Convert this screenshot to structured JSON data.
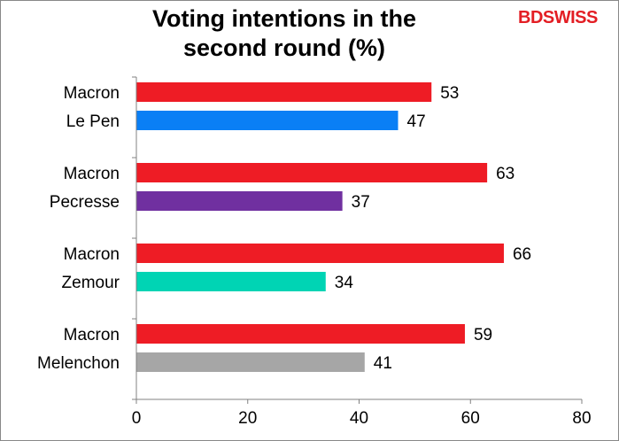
{
  "brand": {
    "part1": "BD",
    "part2": "SWISS"
  },
  "chart_data": {
    "type": "bar",
    "orientation": "horizontal",
    "title": "Voting intentions in the second round (%)",
    "title_lines": [
      "Voting intentions in the",
      "second round (%)"
    ],
    "xlim": [
      0,
      80
    ],
    "xticks": [
      0,
      20,
      40,
      60,
      80
    ],
    "grid": false,
    "groups": [
      {
        "bars": [
          {
            "label": "Macron",
            "value": 53,
            "color": "#ee1c25"
          },
          {
            "label": "Le Pen",
            "value": 47,
            "color": "#0a7ff5"
          }
        ]
      },
      {
        "bars": [
          {
            "label": "Macron",
            "value": 63,
            "color": "#ee1c25"
          },
          {
            "label": "Pecresse",
            "value": 37,
            "color": "#7030a0"
          }
        ]
      },
      {
        "bars": [
          {
            "label": "Macron",
            "value": 66,
            "color": "#ee1c25"
          },
          {
            "label": "Zemour",
            "value": 34,
            "color": "#00d4b4"
          }
        ]
      },
      {
        "bars": [
          {
            "label": "Macron",
            "value": 59,
            "color": "#ee1c25"
          },
          {
            "label": "Melenchon",
            "value": 41,
            "color": "#a6a6a6"
          }
        ]
      }
    ]
  }
}
